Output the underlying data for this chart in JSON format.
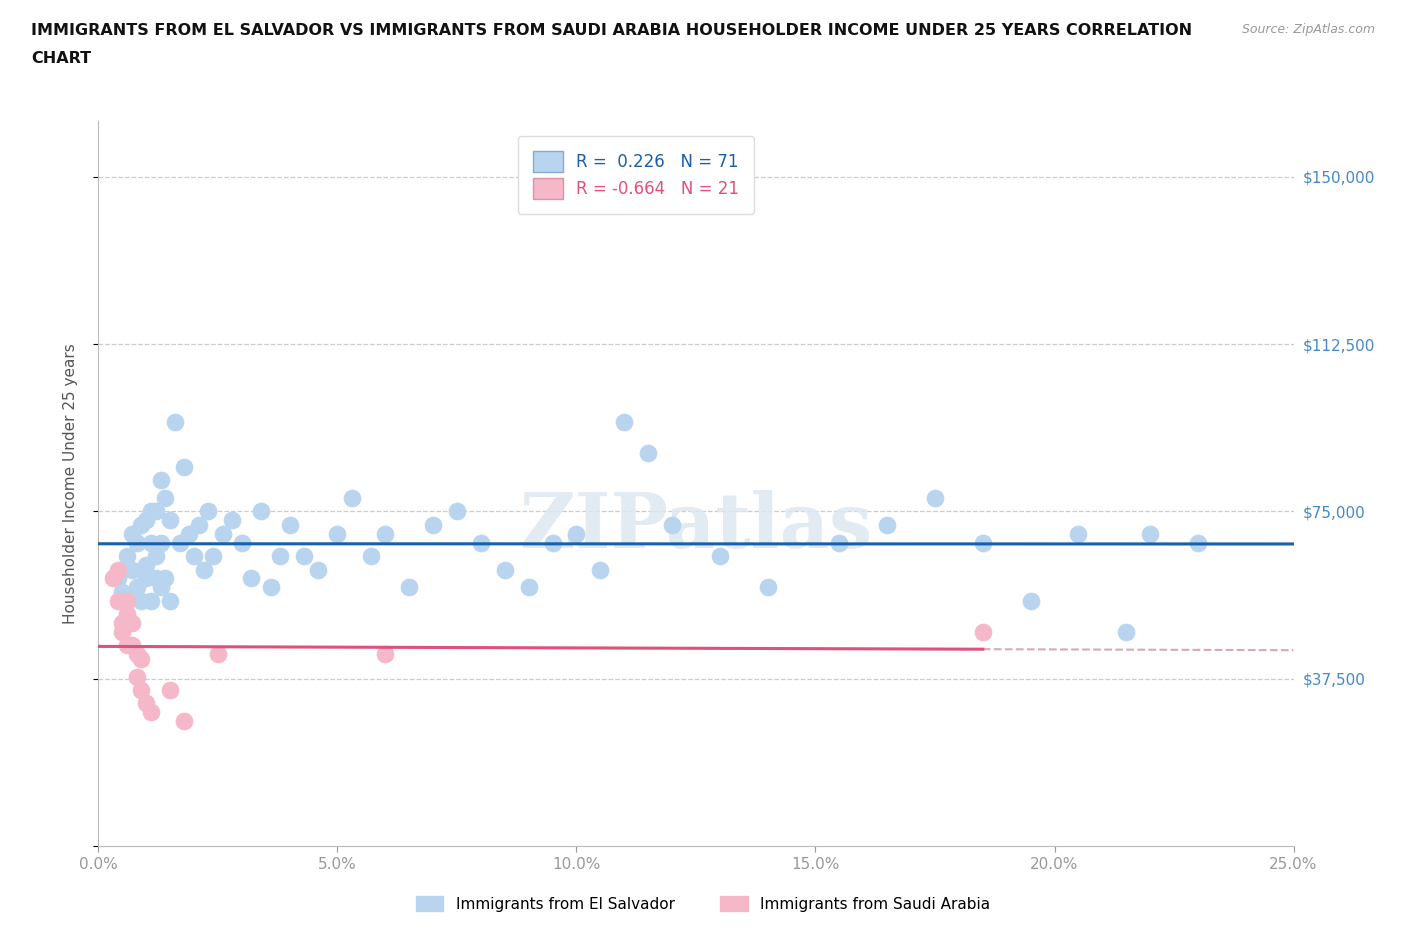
{
  "title_line1": "IMMIGRANTS FROM EL SALVADOR VS IMMIGRANTS FROM SAUDI ARABIA HOUSEHOLDER INCOME UNDER 25 YEARS CORRELATION",
  "title_line2": "CHART",
  "source": "Source: ZipAtlas.com",
  "ylabel": "Householder Income Under 25 years",
  "xlim": [
    0.0,
    0.25
  ],
  "ylim": [
    0,
    162500
  ],
  "yticks": [
    0,
    37500,
    75000,
    112500,
    150000
  ],
  "ytick_labels": [
    "",
    "$37,500",
    "$75,000",
    "$112,500",
    "$150,000"
  ],
  "xticks": [
    0.0,
    0.05,
    0.1,
    0.15,
    0.2,
    0.25
  ],
  "xtick_labels": [
    "0.0%",
    "5.0%",
    "10.0%",
    "15.0%",
    "20.0%",
    "25.0%"
  ],
  "blue_R": "0.226",
  "blue_N": "71",
  "pink_R": "-0.664",
  "pink_N": "21",
  "blue_dot_color": "#b8d4ee",
  "pink_dot_color": "#f5b8c8",
  "blue_line_color": "#1a5fa8",
  "pink_line_color": "#e0507a",
  "pink_line_dashed_color": "#d4aab8",
  "watermark": "ZIPatlas",
  "watermark_color": "#dde8f0",
  "title_color": "#111111",
  "tick_color": "#4488cc",
  "legend_label_blue": "Immigrants from El Salvador",
  "legend_label_pink": "Immigrants from Saudi Arabia",
  "blue_x": [
    0.004,
    0.005,
    0.006,
    0.007,
    0.007,
    0.008,
    0.008,
    0.009,
    0.009,
    0.01,
    0.01,
    0.01,
    0.011,
    0.011,
    0.011,
    0.012,
    0.012,
    0.012,
    0.013,
    0.013,
    0.013,
    0.014,
    0.014,
    0.015,
    0.015,
    0.016,
    0.017,
    0.018,
    0.019,
    0.02,
    0.021,
    0.022,
    0.023,
    0.024,
    0.026,
    0.028,
    0.03,
    0.032,
    0.034,
    0.036,
    0.038,
    0.04,
    0.043,
    0.046,
    0.05,
    0.053,
    0.057,
    0.06,
    0.065,
    0.07,
    0.075,
    0.08,
    0.085,
    0.09,
    0.095,
    0.1,
    0.105,
    0.11,
    0.115,
    0.12,
    0.13,
    0.14,
    0.155,
    0.165,
    0.175,
    0.185,
    0.195,
    0.205,
    0.215,
    0.22,
    0.23
  ],
  "blue_y": [
    60000,
    57000,
    65000,
    62000,
    70000,
    58000,
    68000,
    72000,
    55000,
    63000,
    60000,
    73000,
    55000,
    68000,
    75000,
    60000,
    65000,
    75000,
    58000,
    68000,
    82000,
    60000,
    78000,
    55000,
    73000,
    95000,
    68000,
    85000,
    70000,
    65000,
    72000,
    62000,
    75000,
    65000,
    70000,
    73000,
    68000,
    60000,
    75000,
    58000,
    65000,
    72000,
    65000,
    62000,
    70000,
    78000,
    65000,
    70000,
    58000,
    72000,
    75000,
    68000,
    62000,
    58000,
    68000,
    70000,
    62000,
    95000,
    88000,
    72000,
    65000,
    58000,
    68000,
    72000,
    78000,
    68000,
    55000,
    70000,
    48000,
    70000,
    68000
  ],
  "pink_x": [
    0.003,
    0.004,
    0.004,
    0.005,
    0.005,
    0.006,
    0.006,
    0.006,
    0.007,
    0.007,
    0.008,
    0.008,
    0.009,
    0.009,
    0.01,
    0.011,
    0.015,
    0.018,
    0.025,
    0.06,
    0.185
  ],
  "pink_y": [
    60000,
    62000,
    55000,
    50000,
    48000,
    52000,
    45000,
    55000,
    45000,
    50000,
    38000,
    43000,
    35000,
    42000,
    32000,
    30000,
    35000,
    28000,
    43000,
    43000,
    48000
  ]
}
